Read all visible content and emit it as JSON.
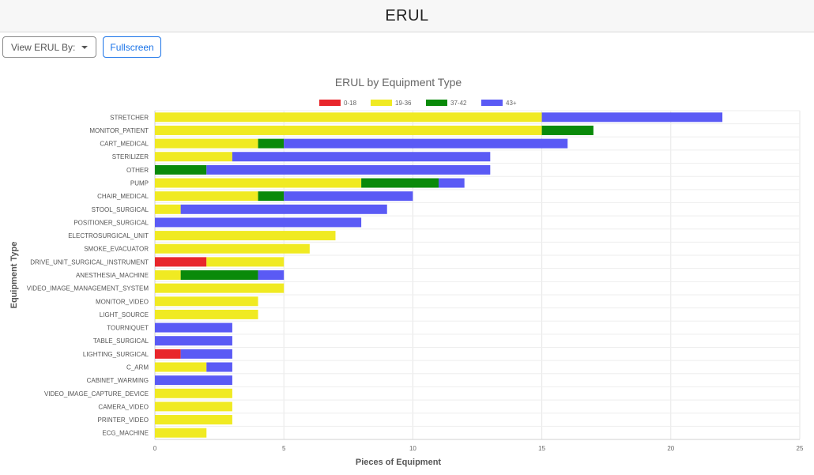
{
  "header": {
    "title": "ERUL"
  },
  "toolbar": {
    "view_by_label": "View ERUL By:",
    "fullscreen_label": "Fullscreen"
  },
  "chart_data": {
    "type": "bar",
    "orientation": "horizontal",
    "stacked": true,
    "title": "ERUL by Equipment Type",
    "xlabel": "Pieces of Equipment",
    "ylabel": "Equipment Type",
    "xlim": [
      0,
      25
    ],
    "xticks": [
      0,
      5,
      10,
      15,
      20,
      25
    ],
    "grid": true,
    "legend_position": "top",
    "categories": [
      "STRETCHER",
      "MONITOR_PATIENT",
      "CART_MEDICAL",
      "STERILIZER",
      "OTHER",
      "PUMP",
      "CHAIR_MEDICAL",
      "STOOL_SURGICAL",
      "POSITIONER_SURGICAL",
      "ELECTROSURGICAL_UNIT",
      "SMOKE_EVACUATOR",
      "DRIVE_UNIT_SURGICAL_INSTRUMENT",
      "ANESTHESIA_MACHINE",
      "VIDEO_IMAGE_MANAGEMENT_SYSTEM",
      "MONITOR_VIDEO",
      "LIGHT_SOURCE",
      "TOURNIQUET",
      "TABLE_SURGICAL",
      "LIGHTING_SURGICAL",
      "C_ARM",
      "CABINET_WARMING",
      "VIDEO_IMAGE_CAPTURE_DEVICE",
      "CAMERA_VIDEO",
      "PRINTER_VIDEO",
      "ECG_MACHINE"
    ],
    "series": [
      {
        "name": "0-18",
        "color": "#e8262b",
        "values": [
          0,
          0,
          0,
          0,
          0,
          0,
          0,
          0,
          0,
          0,
          0,
          2,
          0,
          0,
          0,
          0,
          0,
          0,
          1,
          0,
          0,
          0,
          0,
          0,
          0
        ]
      },
      {
        "name": "19-36",
        "color": "#f0ea22",
        "values": [
          15,
          15,
          4,
          3,
          0,
          8,
          4,
          1,
          0,
          7,
          6,
          3,
          1,
          5,
          4,
          4,
          0,
          0,
          0,
          2,
          0,
          3,
          3,
          3,
          2
        ]
      },
      {
        "name": "37-42",
        "color": "#0a8a0a",
        "values": [
          0,
          2,
          1,
          0,
          2,
          3,
          1,
          0,
          0,
          0,
          0,
          0,
          3,
          0,
          0,
          0,
          0,
          0,
          0,
          0,
          0,
          0,
          0,
          0,
          0
        ]
      },
      {
        "name": "43+",
        "color": "#5a5af5",
        "values": [
          7,
          0,
          11,
          10,
          11,
          1,
          5,
          8,
          8,
          0,
          0,
          0,
          1,
          0,
          0,
          0,
          3,
          3,
          2,
          1,
          3,
          0,
          0,
          0,
          0
        ]
      }
    ]
  }
}
